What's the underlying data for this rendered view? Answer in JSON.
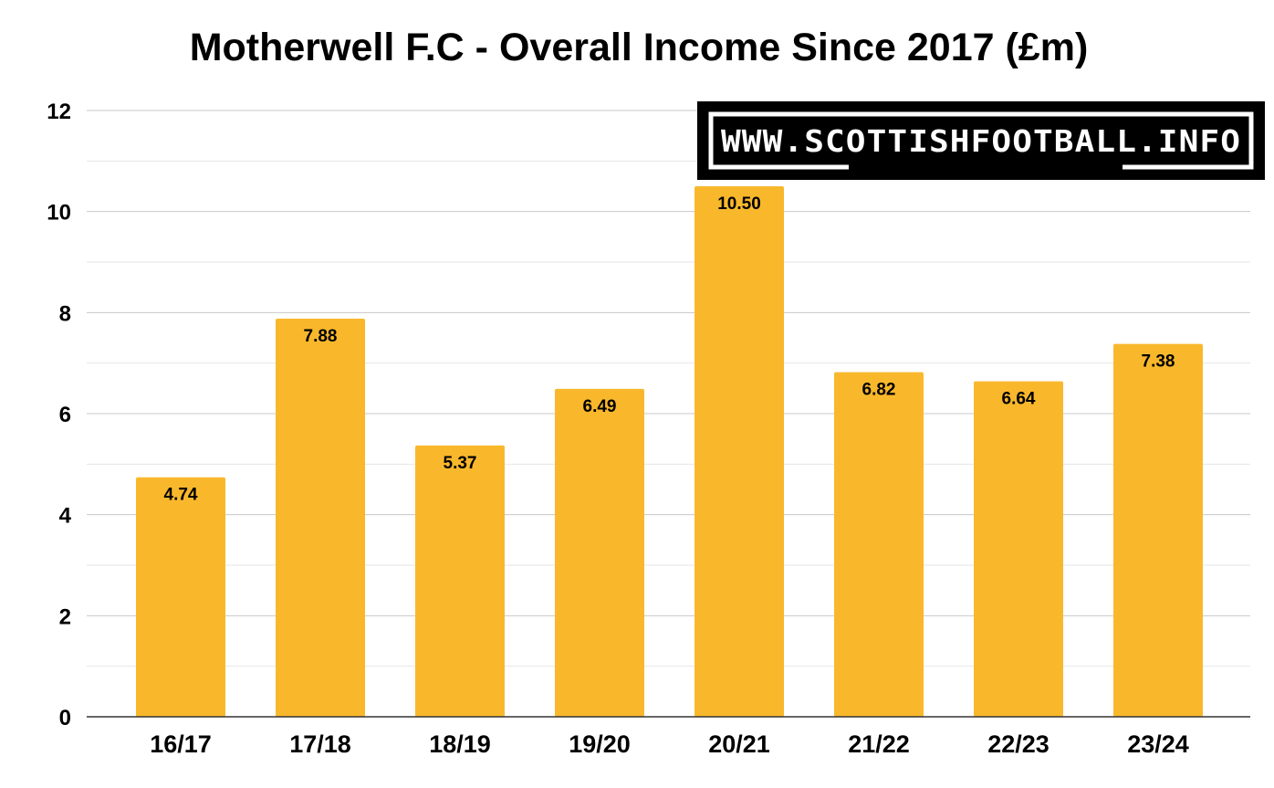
{
  "chart_data": {
    "type": "bar",
    "title": "Motherwell F.C - Overall Income Since 2017 (£m)",
    "categories": [
      "16/17",
      "17/18",
      "18/19",
      "19/20",
      "20/21",
      "21/22",
      "22/23",
      "23/24"
    ],
    "values": [
      4.74,
      7.88,
      5.37,
      6.49,
      10.5,
      6.82,
      6.64,
      7.38
    ],
    "data_labels": [
      "4.74",
      "7.88",
      "5.37",
      "6.49",
      "10.50",
      "6.82",
      "6.64",
      "7.38"
    ],
    "y_ticks": [
      "0",
      "2",
      "4",
      "6",
      "8",
      "10",
      "12"
    ],
    "ylim": [
      0,
      12
    ],
    "xlabel": "",
    "ylabel": "",
    "grid": true,
    "legend": false,
    "bar_color": "#F9B82C",
    "gridline_color": "#CCCCCC"
  },
  "watermark": {
    "text": "WWW.SCOTTISHFOOTBALL.INFO",
    "background_color": "#000000",
    "text_color": "#FFFFFF"
  }
}
